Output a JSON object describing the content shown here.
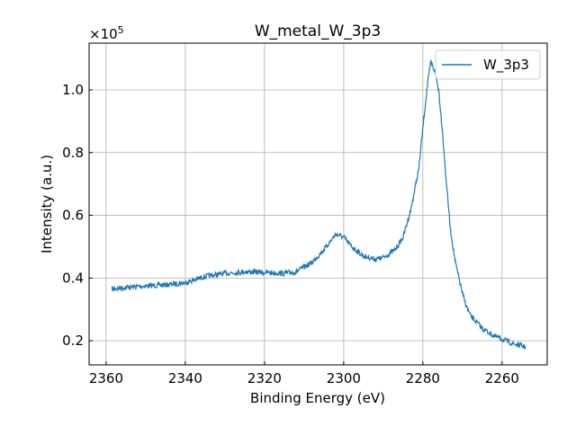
{
  "chart_data": {
    "type": "line",
    "title": "W_metal_W_3p3",
    "xlabel": "Binding Energy (eV)",
    "ylabel": "Intensity (a.u.)",
    "y_multiplier": "×10",
    "y_multiplier_exp": "5",
    "xlim": [
      2364.3,
      2248.6
    ],
    "ylim": [
      0.123,
      1.149
    ],
    "x_reversed": true,
    "grid": true,
    "legend_position": "top-right",
    "x_ticks": [
      "2360",
      "2340",
      "2320",
      "2300",
      "2280",
      "2260"
    ],
    "x_tick_values": [
      2360,
      2340,
      2320,
      2300,
      2280,
      2260
    ],
    "y_ticks": [
      "0.2",
      "0.4",
      "0.6",
      "0.8",
      "1.0"
    ],
    "y_tick_values": [
      0.2,
      0.4,
      0.6,
      0.8,
      1.0
    ],
    "series": [
      {
        "name": "W_3p3",
        "color": "#1f77b4",
        "x": [
          2358.5,
          2355,
          2350,
          2345,
          2340,
          2335,
          2330,
          2325,
          2320,
          2315,
          2312,
          2308,
          2305,
          2302,
          2300,
          2298,
          2295,
          2292,
          2290,
          2287,
          2285,
          2283,
          2281,
          2280,
          2279,
          2278,
          2277,
          2276,
          2275,
          2274.5,
          2273,
          2271.8,
          2270,
          2269,
          2268,
          2265,
          2262,
          2260,
          2257,
          2254
        ],
        "y": [
          0.365,
          0.37,
          0.375,
          0.378,
          0.385,
          0.405,
          0.415,
          0.42,
          0.418,
          0.415,
          0.42,
          0.45,
          0.49,
          0.54,
          0.53,
          0.5,
          0.47,
          0.46,
          0.465,
          0.49,
          0.53,
          0.62,
          0.75,
          0.88,
          1.0,
          1.09,
          1.06,
          1.0,
          0.86,
          0.77,
          0.55,
          0.45,
          0.35,
          0.31,
          0.28,
          0.24,
          0.215,
          0.205,
          0.19,
          0.18
        ]
      }
    ]
  }
}
